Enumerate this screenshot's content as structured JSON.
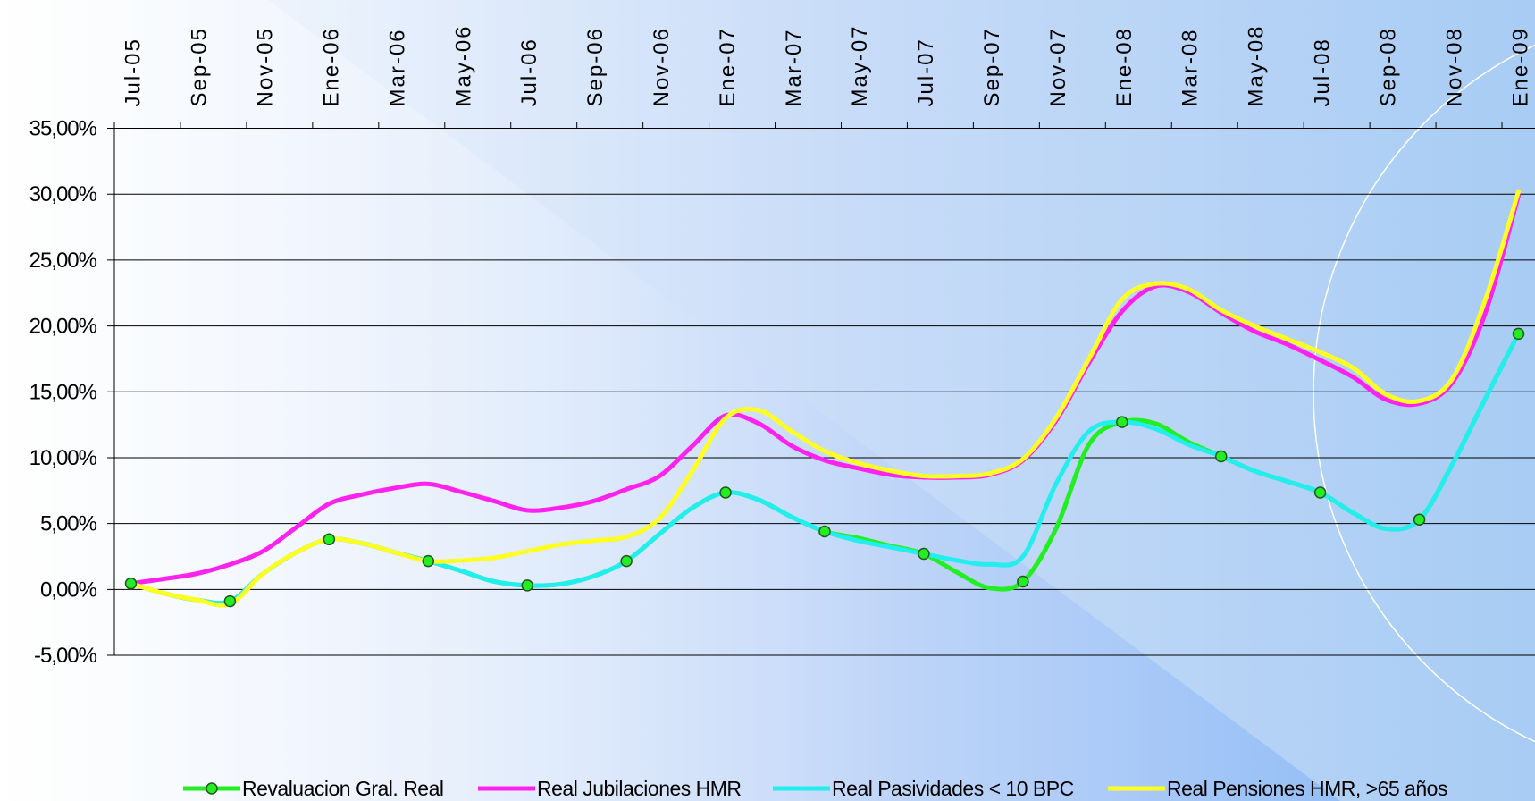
{
  "chart_data": {
    "type": "line",
    "categories": [
      "Jul-05",
      null,
      "Sep-05",
      null,
      "Nov-05",
      null,
      "Ene-06",
      null,
      "Mar-06",
      null,
      "May-06",
      null,
      "Jul-06",
      null,
      "Sep-06",
      null,
      "Nov-06",
      null,
      "Ene-07",
      null,
      "Mar-07",
      null,
      "May-07",
      null,
      "Jul-07",
      null,
      "Sep-07",
      null,
      "Nov-07",
      null,
      "Ene-08",
      null,
      "Mar-08",
      null,
      "May-08",
      null,
      "Jul-08",
      null,
      "Sep-08",
      null,
      "Nov-08",
      null,
      "Ene-09"
    ],
    "series": [
      {
        "name": "Revaluacion Gral. Real",
        "color": "#22ee22",
        "values": [
          0.45,
          -0.3,
          -0.8,
          -0.9,
          1.2,
          2.8,
          3.8,
          3.5,
          2.8,
          2.15,
          1.4,
          0.6,
          0.3,
          0.4,
          1.0,
          2.15,
          4.2,
          6.2,
          7.35,
          6.8,
          5.5,
          4.4,
          3.9,
          3.3,
          2.7,
          1.3,
          0.1,
          0.6,
          4.6,
          11.0,
          12.7,
          12.6,
          11.2,
          10.1,
          9.0,
          8.2,
          7.35,
          5.8,
          4.6,
          5.3,
          9.5,
          14.5,
          19.4
        ]
      },
      {
        "name": "Real Jubilaciones HMR",
        "color": "#ff22ee",
        "values": [
          0.45,
          0.8,
          1.2,
          1.9,
          2.9,
          4.7,
          6.5,
          7.2,
          7.7,
          8.0,
          7.4,
          6.7,
          6.0,
          6.2,
          6.7,
          7.6,
          8.6,
          10.9,
          13.2,
          12.6,
          10.9,
          9.8,
          9.2,
          8.7,
          8.5,
          8.5,
          8.7,
          9.8,
          12.8,
          17.2,
          21.1,
          23.0,
          22.6,
          21.0,
          19.6,
          18.6,
          17.4,
          16.1,
          14.4,
          14.1,
          15.7,
          21.0,
          29.9
        ]
      },
      {
        "name": "Real Pasividades < 10 BPC",
        "color": "#22eeee",
        "values": [
          0.45,
          -0.3,
          -0.8,
          -0.9,
          1.2,
          2.8,
          3.8,
          3.5,
          2.8,
          2.15,
          1.4,
          0.6,
          0.3,
          0.4,
          1.0,
          2.15,
          4.2,
          6.2,
          7.35,
          6.8,
          5.5,
          4.4,
          3.7,
          3.2,
          2.7,
          2.2,
          1.9,
          2.5,
          8.0,
          12.0,
          12.7,
          12.2,
          11.0,
          10.1,
          9.0,
          8.2,
          7.35,
          5.8,
          4.6,
          5.3,
          9.5,
          14.5,
          19.4
        ]
      },
      {
        "name": "Real Pensiones HMR, >65 años",
        "color": "#ffff22",
        "values": [
          0.45,
          -0.3,
          -0.8,
          -1.1,
          1.2,
          2.8,
          3.8,
          3.5,
          2.8,
          2.15,
          2.2,
          2.4,
          2.9,
          3.4,
          3.7,
          4.0,
          5.4,
          9.0,
          13.0,
          13.6,
          12.0,
          10.5,
          9.6,
          9.0,
          8.6,
          8.6,
          8.8,
          9.9,
          13.0,
          17.5,
          22.0,
          23.2,
          22.8,
          21.2,
          20.0,
          19.0,
          18.0,
          16.8,
          14.8,
          14.3,
          16.0,
          22.0,
          30.2
        ]
      }
    ],
    "ylim": [
      -5,
      35
    ],
    "yticks": [
      {
        "value": -5,
        "label": "-5,00%"
      },
      {
        "value": 0,
        "label": "0,00%"
      },
      {
        "value": 5,
        "label": "5,00%"
      },
      {
        "value": 10,
        "label": "10,00%"
      },
      {
        "value": 15,
        "label": "15,00%"
      },
      {
        "value": 20,
        "label": "20,00%"
      },
      {
        "value": 25,
        "label": "25,00%"
      },
      {
        "value": 30,
        "label": "30,00%"
      },
      {
        "value": 35,
        "label": "35,00%"
      }
    ],
    "grid": true,
    "legend": "bottom"
  }
}
